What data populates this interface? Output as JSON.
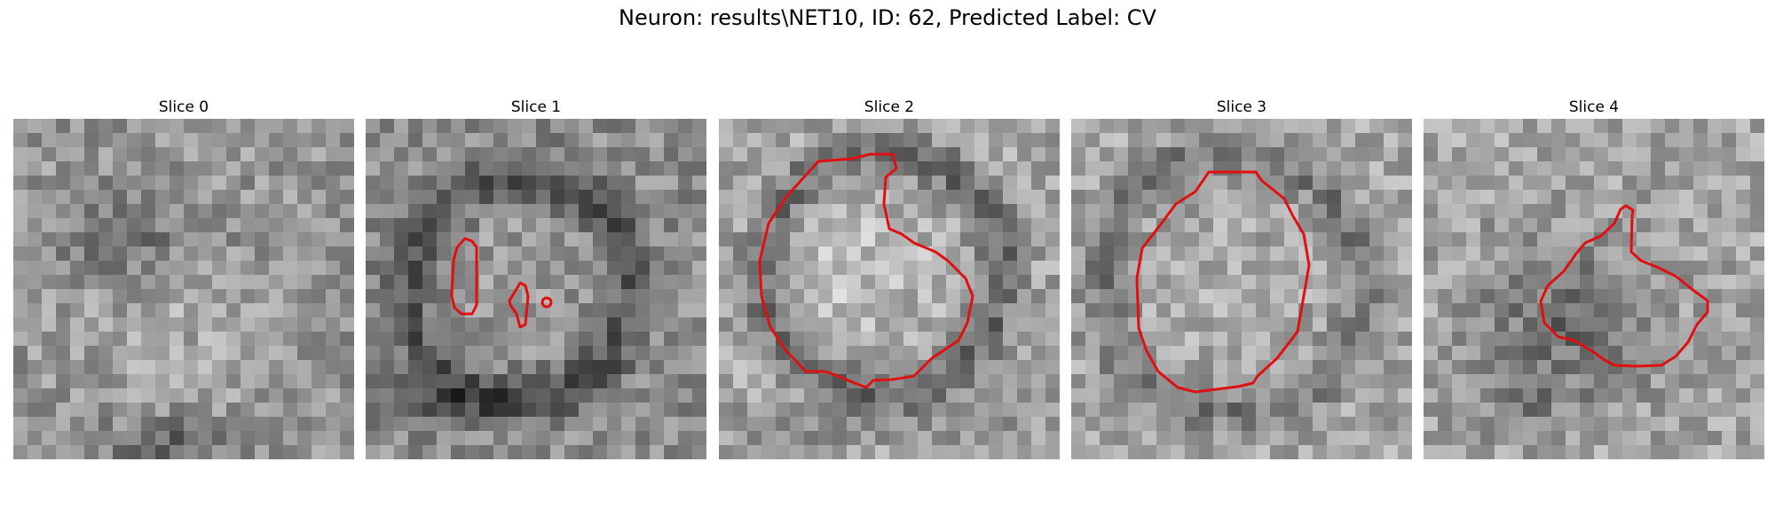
{
  "figure": {
    "title": "Neuron: results\\NET10, ID: 62, Predicted Label: CV"
  },
  "panels": [
    {
      "title": "Slice 0"
    },
    {
      "title": "Slice 1"
    },
    {
      "title": "Slice 2"
    },
    {
      "title": "Slice 3"
    },
    {
      "title": "Slice 4"
    }
  ],
  "colors": {
    "contour": "#e01010",
    "background": "#ffffff"
  }
}
